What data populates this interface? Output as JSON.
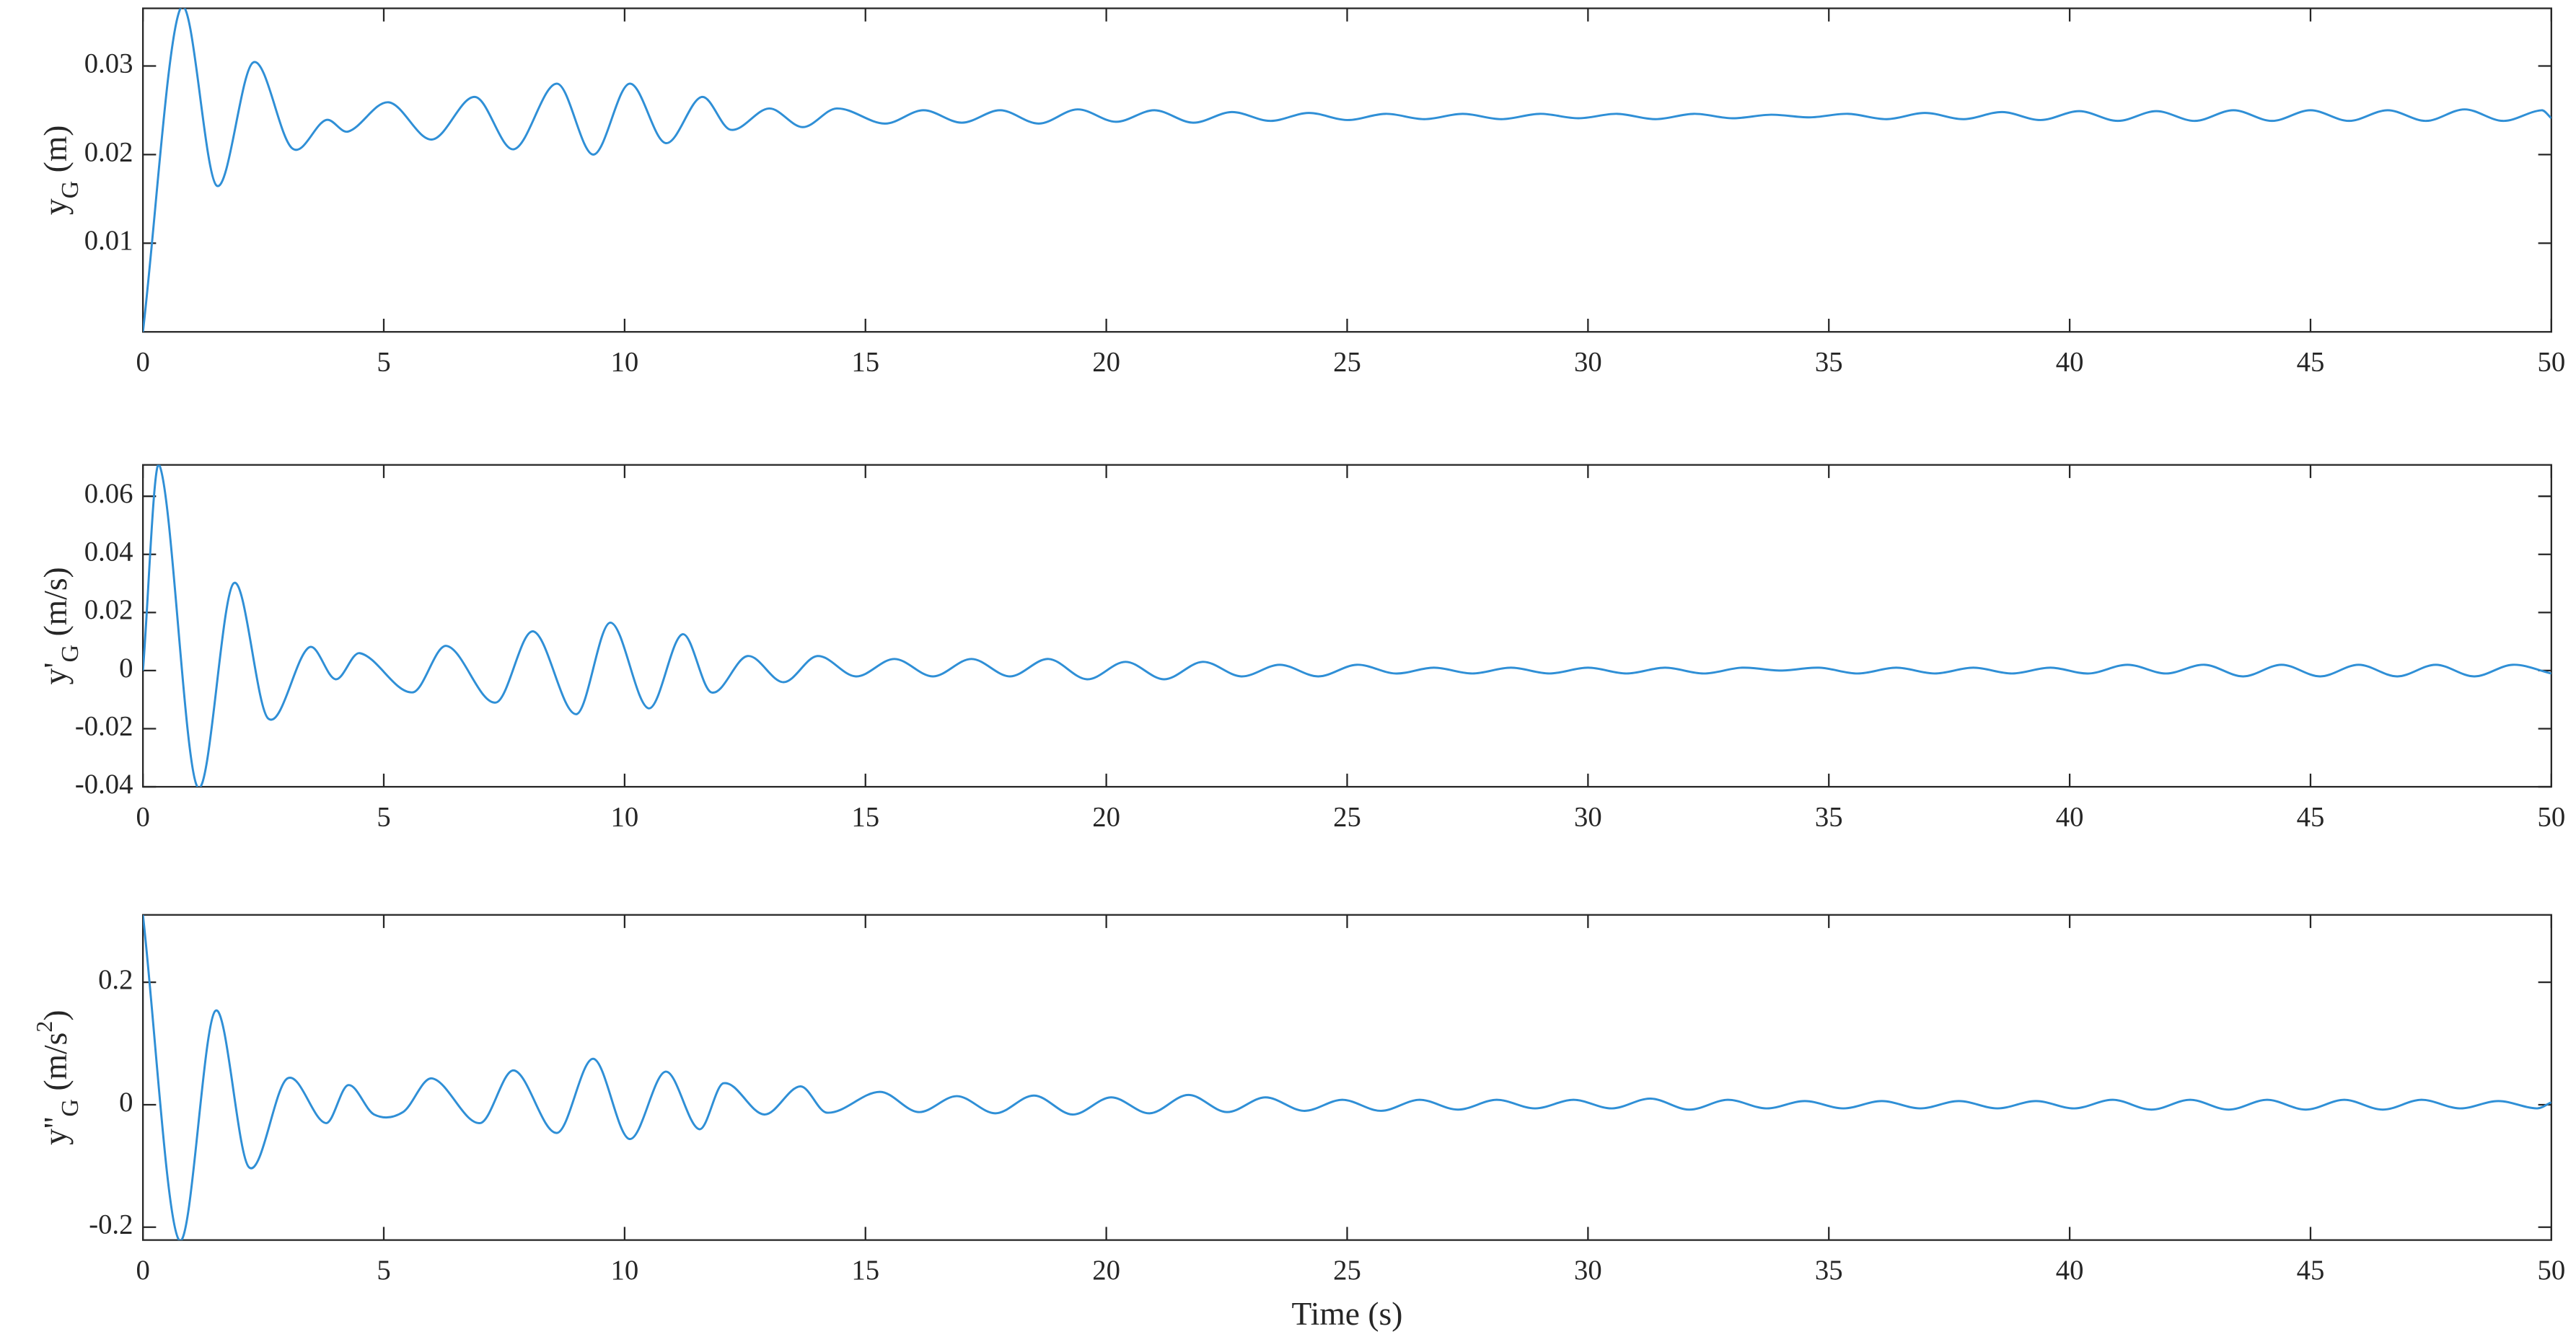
{
  "chart_data": [
    {
      "type": "line",
      "ylabel": [
        {
          "text": "y"
        },
        {
          "text": "G",
          "shift": "sub"
        },
        {
          "text": " (m)"
        }
      ],
      "xlim": [
        0,
        50
      ],
      "xticks": [
        0,
        5,
        10,
        15,
        20,
        25,
        30,
        35,
        40,
        45,
        50
      ],
      "ylim": [
        0,
        0.0365
      ],
      "yticks": [
        0.01,
        0.02,
        0.03
      ],
      "series": [
        {
          "color": "#2f8fd6",
          "x": [
            0,
            0.78,
            1.53,
            2.29,
            3.1,
            3.8,
            4.26,
            5.1,
            6.0,
            6.9,
            7.7,
            8.6,
            9.35,
            10.1,
            10.85,
            11.6,
            12.2,
            13,
            13.7,
            14.4,
            15.4,
            16.2,
            17.0,
            17.8,
            18.6,
            19.4,
            20.2,
            21.0,
            21.8,
            22.6,
            23.4,
            24.2,
            25.0,
            25.8,
            26.6,
            27.4,
            28.2,
            29.0,
            29.8,
            30.6,
            31.4,
            32.2,
            33.0,
            33.8,
            34.6,
            35.4,
            36.2,
            37.0,
            37.8,
            38.6,
            39.4,
            40.2,
            41.0,
            41.8,
            42.6,
            43.4,
            44.2,
            45.0,
            45.8,
            46.6,
            47.4,
            48.2,
            49.0,
            49.8,
            50
          ],
          "values": [
            0,
            0.0365,
            0.0165,
            0.0304,
            0.0207,
            0.0239,
            0.0226,
            0.0259,
            0.0217,
            0.0265,
            0.0206,
            0.028,
            0.02,
            0.028,
            0.0213,
            0.0265,
            0.0228,
            0.0252,
            0.0231,
            0.0252,
            0.0235,
            0.025,
            0.0236,
            0.025,
            0.0235,
            0.0251,
            0.0237,
            0.025,
            0.0236,
            0.0248,
            0.0238,
            0.0247,
            0.0239,
            0.0246,
            0.024,
            0.0246,
            0.024,
            0.0246,
            0.0241,
            0.0246,
            0.024,
            0.0246,
            0.0241,
            0.0245,
            0.0242,
            0.0246,
            0.024,
            0.0247,
            0.024,
            0.0248,
            0.0239,
            0.0249,
            0.0238,
            0.0249,
            0.0238,
            0.025,
            0.0238,
            0.025,
            0.0238,
            0.025,
            0.0238,
            0.0251,
            0.0238,
            0.025,
            0.0241
          ]
        }
      ]
    },
    {
      "type": "line",
      "ylabel": [
        {
          "text": "y'"
        },
        {
          "text": "G",
          "shift": "sub"
        },
        {
          "text": " (m/s)"
        }
      ],
      "xlim": [
        0,
        50
      ],
      "xticks": [
        0,
        5,
        10,
        15,
        20,
        25,
        30,
        35,
        40,
        45,
        50
      ],
      "ylim": [
        -0.04,
        0.0708
      ],
      "yticks": [
        -0.04,
        -0.02,
        0,
        0.02,
        0.04,
        0.06
      ],
      "series": [
        {
          "color": "#2f8fd6",
          "x": [
            0,
            0.34,
            1.13,
            1.88,
            2.6,
            3.45,
            4.0,
            4.5,
            5.6,
            6.3,
            7.33,
            8.1,
            9.0,
            9.7,
            10.5,
            11.2,
            11.8,
            12.55,
            13.3,
            14.0,
            14.8,
            15.6,
            16.4,
            17.2,
            18.0,
            18.8,
            19.6,
            20.4,
            21.2,
            22.0,
            22.8,
            23.6,
            24.4,
            25.2,
            26.0,
            26.8,
            27.6,
            28.4,
            29.2,
            30.0,
            30.8,
            31.6,
            32.4,
            33.2,
            34.0,
            34.8,
            35.6,
            36.4,
            37.2,
            38.0,
            38.8,
            39.6,
            40.4,
            41.2,
            42.0,
            42.8,
            43.6,
            44.4,
            45.2,
            46.0,
            46.8,
            47.6,
            48.4,
            49.2,
            50
          ],
          "values": [
            0,
            0.0708,
            -0.04,
            0.03,
            -0.0165,
            0.008,
            -0.003,
            0.006,
            -0.0075,
            0.0085,
            -0.011,
            0.0135,
            -0.015,
            0.0165,
            -0.013,
            0.0125,
            -0.0075,
            0.005,
            -0.004,
            0.005,
            -0.002,
            0.004,
            -0.002,
            0.004,
            -0.002,
            0.004,
            -0.003,
            0.003,
            -0.003,
            0.003,
            -0.002,
            0.002,
            -0.002,
            0.002,
            -0.001,
            0.001,
            -0.001,
            0.001,
            -0.001,
            0.001,
            -0.001,
            0.001,
            -0.001,
            0.001,
            0,
            0.001,
            -0.001,
            0.001,
            -0.001,
            0.001,
            -0.001,
            0.001,
            -0.001,
            0.002,
            -0.001,
            0.002,
            -0.002,
            0.002,
            -0.002,
            0.002,
            -0.002,
            0.002,
            -0.002,
            0.002,
            -0.001
          ]
        }
      ]
    },
    {
      "type": "line",
      "ylabel": [
        {
          "text": "y''"
        },
        {
          "text": "G",
          "shift": "sub"
        },
        {
          "text": " (m/s"
        },
        {
          "text": "2",
          "shift": "sup"
        },
        {
          "text": ")"
        }
      ],
      "xlabel": "Time (s)",
      "xlim": [
        0,
        50
      ],
      "xticks": [
        0,
        5,
        10,
        15,
        20,
        25,
        30,
        35,
        40,
        45,
        50
      ],
      "ylim": [
        -0.221,
        0.31
      ],
      "yticks": [
        -0.2,
        0,
        0.2
      ],
      "series": [
        {
          "color": "#2f8fd6",
          "x": [
            0,
            0.75,
            1.5,
            2.2,
            3.0,
            3.8,
            4.26,
            4.8,
            5.4,
            6.0,
            7.0,
            7.7,
            8.6,
            9.35,
            10.1,
            10.85,
            11.55,
            12.05,
            12.9,
            13.65,
            14.2,
            15.3,
            16.1,
            16.9,
            17.7,
            18.5,
            19.3,
            20.1,
            20.9,
            21.7,
            22.5,
            23.3,
            24.1,
            24.9,
            25.7,
            26.5,
            27.3,
            28.1,
            28.9,
            29.7,
            30.5,
            31.3,
            32.1,
            32.9,
            33.7,
            34.5,
            35.3,
            36.1,
            36.9,
            37.7,
            38.5,
            39.3,
            40.1,
            40.9,
            41.7,
            42.5,
            43.3,
            44.1,
            44.9,
            45.7,
            46.5,
            47.3,
            48.1,
            48.9,
            49.7,
            50
          ],
          "values": [
            0.31,
            -0.221,
            0.153,
            -0.102,
            0.043,
            -0.03,
            0.032,
            -0.016,
            -0.012,
            0.043,
            -0.03,
            0.056,
            -0.046,
            0.075,
            -0.056,
            0.054,
            -0.04,
            0.035,
            -0.016,
            0.03,
            -0.013,
            0.021,
            -0.012,
            0.014,
            -0.014,
            0.015,
            -0.016,
            0.012,
            -0.014,
            0.016,
            -0.012,
            0.012,
            -0.01,
            0.008,
            -0.01,
            0.008,
            -0.008,
            0.008,
            -0.006,
            0.008,
            -0.006,
            0.01,
            -0.008,
            0.008,
            -0.006,
            0.006,
            -0.006,
            0.006,
            -0.006,
            0.006,
            -0.006,
            0.006,
            -0.006,
            0.008,
            -0.008,
            0.008,
            -0.008,
            0.008,
            -0.008,
            0.008,
            -0.008,
            0.008,
            -0.006,
            0.006,
            -0.006,
            0.004
          ]
        }
      ]
    }
  ]
}
